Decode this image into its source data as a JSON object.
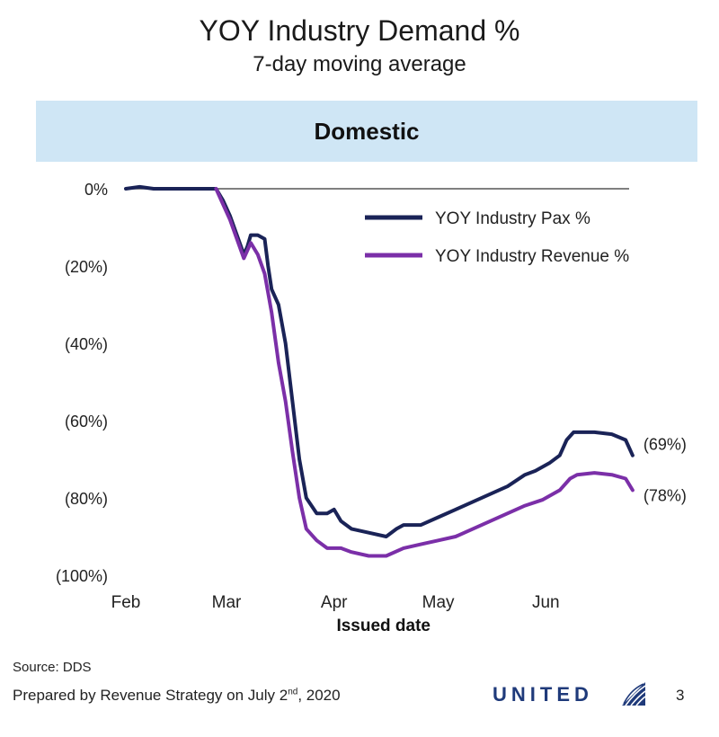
{
  "header": {
    "title": "YOY Industry Demand %",
    "subtitle": "7-day moving average",
    "banner": "Domestic"
  },
  "colors": {
    "banner_bg": "#cfe6f5",
    "pax": "#1a2357",
    "revenue": "#7b2fa8",
    "axis": "#555555"
  },
  "chart_data": {
    "type": "line",
    "title": "YOY Industry Demand %",
    "subtitle": "7-day moving average",
    "panel": "Domestic",
    "xlabel": "Issued date",
    "ylabel": "",
    "x_ticks": [
      {
        "label": "Feb",
        "day": 0
      },
      {
        "label": "Mar",
        "day": 29
      },
      {
        "label": "Apr",
        "day": 60
      },
      {
        "label": "May",
        "day": 90
      },
      {
        "label": "Jun",
        "day": 121
      }
    ],
    "x_range_days": [
      0,
      145
    ],
    "y_ticks": [
      {
        "label": "0%",
        "value": 0
      },
      {
        "label": "(20%)",
        "value": -20
      },
      {
        "label": "(40%)",
        "value": -40
      },
      {
        "label": "(60%)",
        "value": -60
      },
      {
        "label": "(80%)",
        "value": -80
      },
      {
        "label": "(100%)",
        "value": -100
      }
    ],
    "ylim": [
      -100,
      0
    ],
    "legend_position": "top-right",
    "series": [
      {
        "name": "YOY Industry Pax %",
        "color": "#1a2357",
        "end_label": "(69%)",
        "points": [
          [
            0,
            0
          ],
          [
            4,
            0.5
          ],
          [
            8,
            0
          ],
          [
            26,
            0
          ],
          [
            28,
            -3
          ],
          [
            30,
            -7
          ],
          [
            32,
            -12
          ],
          [
            34,
            -17
          ],
          [
            35,
            -15
          ],
          [
            36,
            -12
          ],
          [
            38,
            -12
          ],
          [
            40,
            -13
          ],
          [
            41,
            -20
          ],
          [
            42,
            -26
          ],
          [
            44,
            -30
          ],
          [
            46,
            -40
          ],
          [
            48,
            -55
          ],
          [
            50,
            -70
          ],
          [
            52,
            -80
          ],
          [
            55,
            -84
          ],
          [
            58,
            -84
          ],
          [
            60,
            -83
          ],
          [
            62,
            -86
          ],
          [
            65,
            -88
          ],
          [
            70,
            -89
          ],
          [
            75,
            -90
          ],
          [
            78,
            -88
          ],
          [
            80,
            -87
          ],
          [
            85,
            -87
          ],
          [
            90,
            -85
          ],
          [
            95,
            -83
          ],
          [
            100,
            -81
          ],
          [
            105,
            -79
          ],
          [
            110,
            -77
          ],
          [
            115,
            -74
          ],
          [
            118,
            -73
          ],
          [
            122,
            -71
          ],
          [
            125,
            -69
          ],
          [
            127,
            -65
          ],
          [
            129,
            -63
          ],
          [
            135,
            -63
          ],
          [
            140,
            -63.5
          ],
          [
            144,
            -65
          ],
          [
            146,
            -69
          ]
        ]
      },
      {
        "name": "YOY Industry Revenue %",
        "color": "#7b2fa8",
        "end_label": "(78%)",
        "points": [
          [
            26,
            0
          ],
          [
            28,
            -4
          ],
          [
            30,
            -8
          ],
          [
            32,
            -13
          ],
          [
            34,
            -18
          ],
          [
            35,
            -16
          ],
          [
            36,
            -14
          ],
          [
            38,
            -17
          ],
          [
            40,
            -22
          ],
          [
            42,
            -32
          ],
          [
            44,
            -45
          ],
          [
            46,
            -55
          ],
          [
            48,
            -68
          ],
          [
            50,
            -80
          ],
          [
            52,
            -88
          ],
          [
            55,
            -91
          ],
          [
            58,
            -93
          ],
          [
            62,
            -93
          ],
          [
            65,
            -94
          ],
          [
            70,
            -95
          ],
          [
            75,
            -95
          ],
          [
            80,
            -93
          ],
          [
            85,
            -92
          ],
          [
            90,
            -91
          ],
          [
            95,
            -90
          ],
          [
            100,
            -88
          ],
          [
            105,
            -86
          ],
          [
            110,
            -84
          ],
          [
            115,
            -82
          ],
          [
            120,
            -80.5
          ],
          [
            125,
            -78
          ],
          [
            128,
            -75
          ],
          [
            130,
            -74
          ],
          [
            135,
            -73.5
          ],
          [
            140,
            -74
          ],
          [
            144,
            -75
          ],
          [
            146,
            -78
          ]
        ]
      }
    ]
  },
  "footer": {
    "source": "Source: DDS",
    "prepared_prefix": "Prepared by Revenue Strategy on July 2",
    "prepared_sup": "nd",
    "prepared_suffix": ", 2020",
    "logo_text": "UNITED",
    "logo_icon": "globe-icon",
    "page_number": "3"
  }
}
